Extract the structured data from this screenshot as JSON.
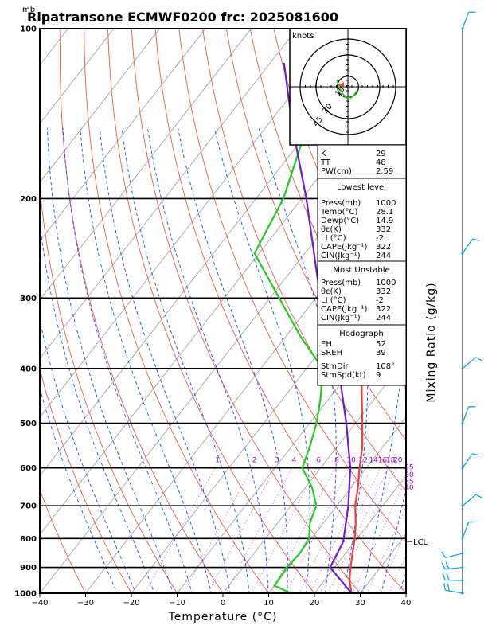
{
  "header": {
    "title": "Ripatransone ECMWF0200  frc: 2025081600",
    "pressure_unit": "mb",
    "hodograph_unit": "knots",
    "lcl_label": "LCL"
  },
  "colors": {
    "temperature": "#e8423a",
    "dewpoint": "#22cc22",
    "parcel": "#6a1fd0",
    "isotherm": "#999999",
    "dry_adiabat": "#e65a50",
    "moist_adiabat": "#1f4fe0",
    "mixing_ratio": "#cc44cc",
    "wind": "#00a0e0"
  },
  "chart_data": {
    "type": "skew-t",
    "title": "Ripatransone ECMWF0200  frc: 2025081600",
    "xlabel": "Temperature (°C)",
    "ylabel": "Mixing Ratio (g/kg)",
    "x_ticks": [
      -40,
      -30,
      -20,
      -10,
      0,
      10,
      20,
      30,
      40
    ],
    "pressure_levels": [
      100,
      200,
      300,
      400,
      500,
      600,
      700,
      800,
      900,
      1000
    ],
    "xlim": [
      -40,
      40
    ],
    "ylim": [
      1000,
      100
    ],
    "y_scale": "log",
    "mixing_ratio_labels": [
      "1",
      "2",
      "3",
      "4",
      "6",
      "8",
      "10",
      "12",
      "14",
      "16",
      "18",
      "20",
      "25",
      "30",
      "35",
      "40"
    ],
    "series": [
      {
        "name": "temperature",
        "points": [
          {
            "p": 1000,
            "t": 28.1
          },
          {
            "p": 950,
            "t": 25.5
          },
          {
            "p": 900,
            "t": 23.5
          },
          {
            "p": 850,
            "t": 21.5
          },
          {
            "p": 800,
            "t": 19.5
          },
          {
            "p": 750,
            "t": 17.0
          },
          {
            "p": 700,
            "t": 14.0
          },
          {
            "p": 650,
            "t": 11.5
          },
          {
            "p": 600,
            "t": 8.5
          },
          {
            "p": 550,
            "t": 5.5
          },
          {
            "p": 500,
            "t": 1.5
          },
          {
            "p": 450,
            "t": -3.0
          },
          {
            "p": 400,
            "t": -8.0
          },
          {
            "p": 350,
            "t": -13.0
          },
          {
            "p": 300,
            "t": -19.0
          },
          {
            "p": 250,
            "t": -26.5
          },
          {
            "p": 200,
            "t": -30.5
          },
          {
            "p": 150,
            "t": -37.5
          },
          {
            "p": 100,
            "t": -46.0
          }
        ]
      },
      {
        "name": "dewpoint",
        "points": [
          {
            "p": 1000,
            "t": 14.9
          },
          {
            "p": 970,
            "t": 10.0
          },
          {
            "p": 900,
            "t": 9.5
          },
          {
            "p": 850,
            "t": 10.0
          },
          {
            "p": 800,
            "t": 9.5
          },
          {
            "p": 750,
            "t": 7.0
          },
          {
            "p": 700,
            "t": 5.5
          },
          {
            "p": 650,
            "t": 1.5
          },
          {
            "p": 600,
            "t": -4.0
          },
          {
            "p": 550,
            "t": -6.0
          },
          {
            "p": 500,
            "t": -8.5
          },
          {
            "p": 450,
            "t": -12.0
          },
          {
            "p": 400,
            "t": -16.5
          },
          {
            "p": 350,
            "t": -27.0
          },
          {
            "p": 300,
            "t": -38.0
          },
          {
            "p": 250,
            "t": -51.0
          },
          {
            "p": 200,
            "t": -54.0
          },
          {
            "p": 150,
            "t": -61.0
          },
          {
            "p": 100,
            "t": -73.0
          }
        ]
      },
      {
        "name": "parcel",
        "points": [
          {
            "p": 1000,
            "t": 28.1
          },
          {
            "p": 900,
            "t": 19.0
          },
          {
            "p": 810,
            "t": 17.5
          },
          {
            "p": 700,
            "t": 12.5
          },
          {
            "p": 600,
            "t": 6.5
          },
          {
            "p": 500,
            "t": -2.0
          },
          {
            "p": 400,
            "t": -13.0
          },
          {
            "p": 300,
            "t": -29.0
          },
          {
            "p": 200,
            "t": -49.0
          },
          {
            "p": 150,
            "t": -64.0
          },
          {
            "p": 115,
            "t": -77.0
          }
        ]
      }
    ],
    "lcl_pressure": 810,
    "hodograph": {
      "rings_kt": [
        10,
        30,
        45
      ],
      "ring_labels": [
        "10",
        "30",
        "45"
      ],
      "storm_motion": {
        "dir_deg": 108,
        "speed_kt": 9
      }
    },
    "wind_barb_levels_mb": [
      100,
      250,
      400,
      500,
      600,
      700,
      800,
      850,
      900,
      950,
      1000
    ]
  },
  "indices": {
    "K": "29",
    "TT": "48",
    "PW(cm)": "2.59"
  },
  "lowest_level": {
    "heading": "Lowest level",
    "rows": [
      {
        "name": "Press(mb)",
        "value": "1000"
      },
      {
        "name": "Temp(°C)",
        "value": "28.1"
      },
      {
        "name": "Dewp(°C)",
        "value": "14.9"
      },
      {
        "name": "θε(K)",
        "value": "332"
      },
      {
        "name": "LI (°C)",
        "value": "-2"
      },
      {
        "name": "CAPE(Jkg⁻¹)",
        "value": "322"
      },
      {
        "name": "CIN(Jkg⁻¹)",
        "value": "244"
      }
    ]
  },
  "most_unstable": {
    "heading": "Most Unstable",
    "rows": [
      {
        "name": "Press(mb)",
        "value": "1000"
      },
      {
        "name": "θε(K)",
        "value": "332"
      },
      {
        "name": "LI (°C)",
        "value": "-2"
      },
      {
        "name": "CAPE(Jkg⁻¹)",
        "value": "322"
      },
      {
        "name": "CIN(Jkg⁻¹)",
        "value": "244"
      }
    ]
  },
  "hodograph_box": {
    "heading": "Hodograph",
    "rows": [
      {
        "name": "EH",
        "value": "52"
      },
      {
        "name": "SREH",
        "value": "39"
      },
      {
        "name": "StmDir",
        "value": "108°"
      },
      {
        "name": "StmSpd(kt)",
        "value": "9"
      }
    ]
  }
}
